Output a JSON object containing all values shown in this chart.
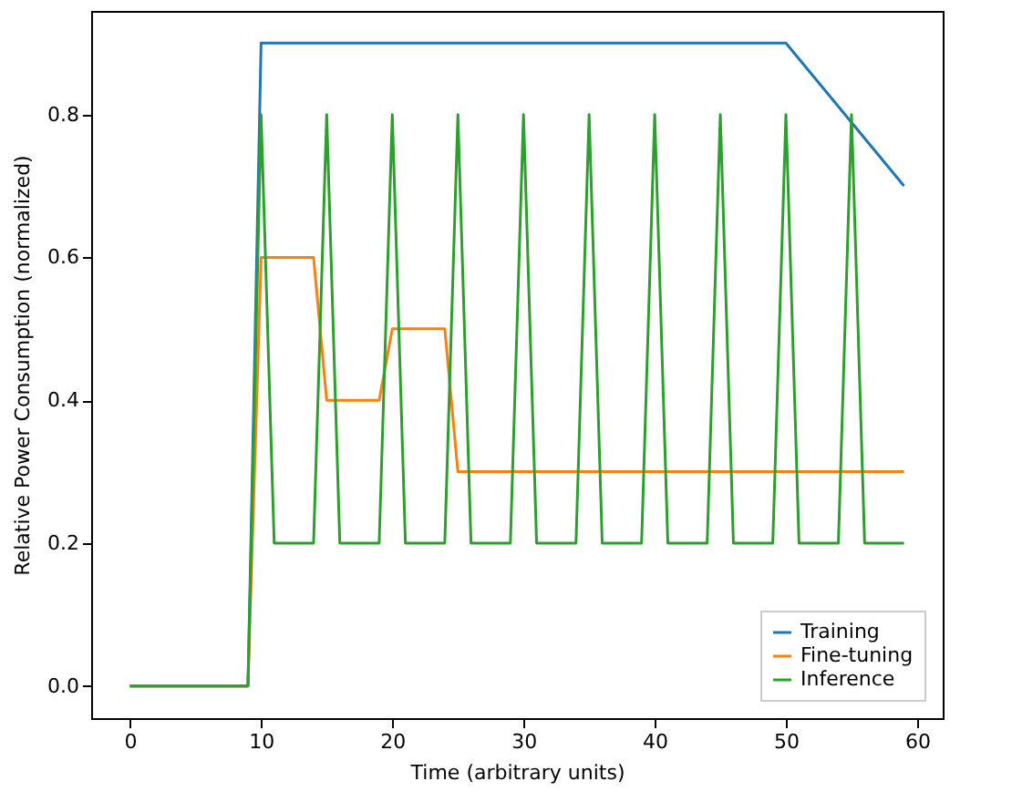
{
  "chart_data": {
    "type": "line",
    "xlabel": "Time (arbitrary units)",
    "ylabel": "Relative Power Consumption (normalized)",
    "xlim": [
      -2.95,
      61.95
    ],
    "ylim": [
      -0.045,
      0.945
    ],
    "xticks": [
      0,
      10,
      20,
      30,
      40,
      50,
      60
    ],
    "yticks": [
      {
        "value": 0,
        "label": "0.0"
      },
      {
        "value": 0.2,
        "label": "0.2"
      },
      {
        "value": 0.4,
        "label": "0.4"
      },
      {
        "value": 0.6,
        "label": "0.6"
      },
      {
        "value": 0.8,
        "label": "0.8"
      }
    ],
    "grid": false,
    "legend": "bottom right",
    "line_style": "solid",
    "marker": "none",
    "series": [
      {
        "name": "Training",
        "color": "#1f77b4",
        "x": [
          0,
          9,
          10,
          50,
          59
        ],
        "values": [
          0,
          0,
          0.9,
          0.9,
          0.7
        ]
      },
      {
        "name": "Fine-tuning",
        "color": "#ff7f0e",
        "x": [
          0,
          9,
          10,
          14,
          15,
          19,
          20,
          24,
          25,
          59
        ],
        "values": [
          0,
          0,
          0.6,
          0.6,
          0.4,
          0.4,
          0.5,
          0.5,
          0.3,
          0.3
        ]
      },
      {
        "name": "Inference",
        "color": "#2ca02c",
        "x": [
          0,
          9,
          10,
          11,
          14,
          15,
          16,
          19,
          20,
          21,
          24,
          25,
          26,
          29,
          30,
          31,
          34,
          35,
          36,
          39,
          40,
          41,
          44,
          45,
          46,
          49,
          50,
          51,
          54,
          55,
          56,
          59
        ],
        "values": [
          0,
          0,
          0.8,
          0.2,
          0.2,
          0.8,
          0.2,
          0.2,
          0.8,
          0.2,
          0.2,
          0.8,
          0.2,
          0.2,
          0.8,
          0.2,
          0.2,
          0.8,
          0.2,
          0.2,
          0.8,
          0.2,
          0.2,
          0.8,
          0.2,
          0.2,
          0.8,
          0.2,
          0.2,
          0.8,
          0.2,
          0.2
        ]
      }
    ]
  }
}
